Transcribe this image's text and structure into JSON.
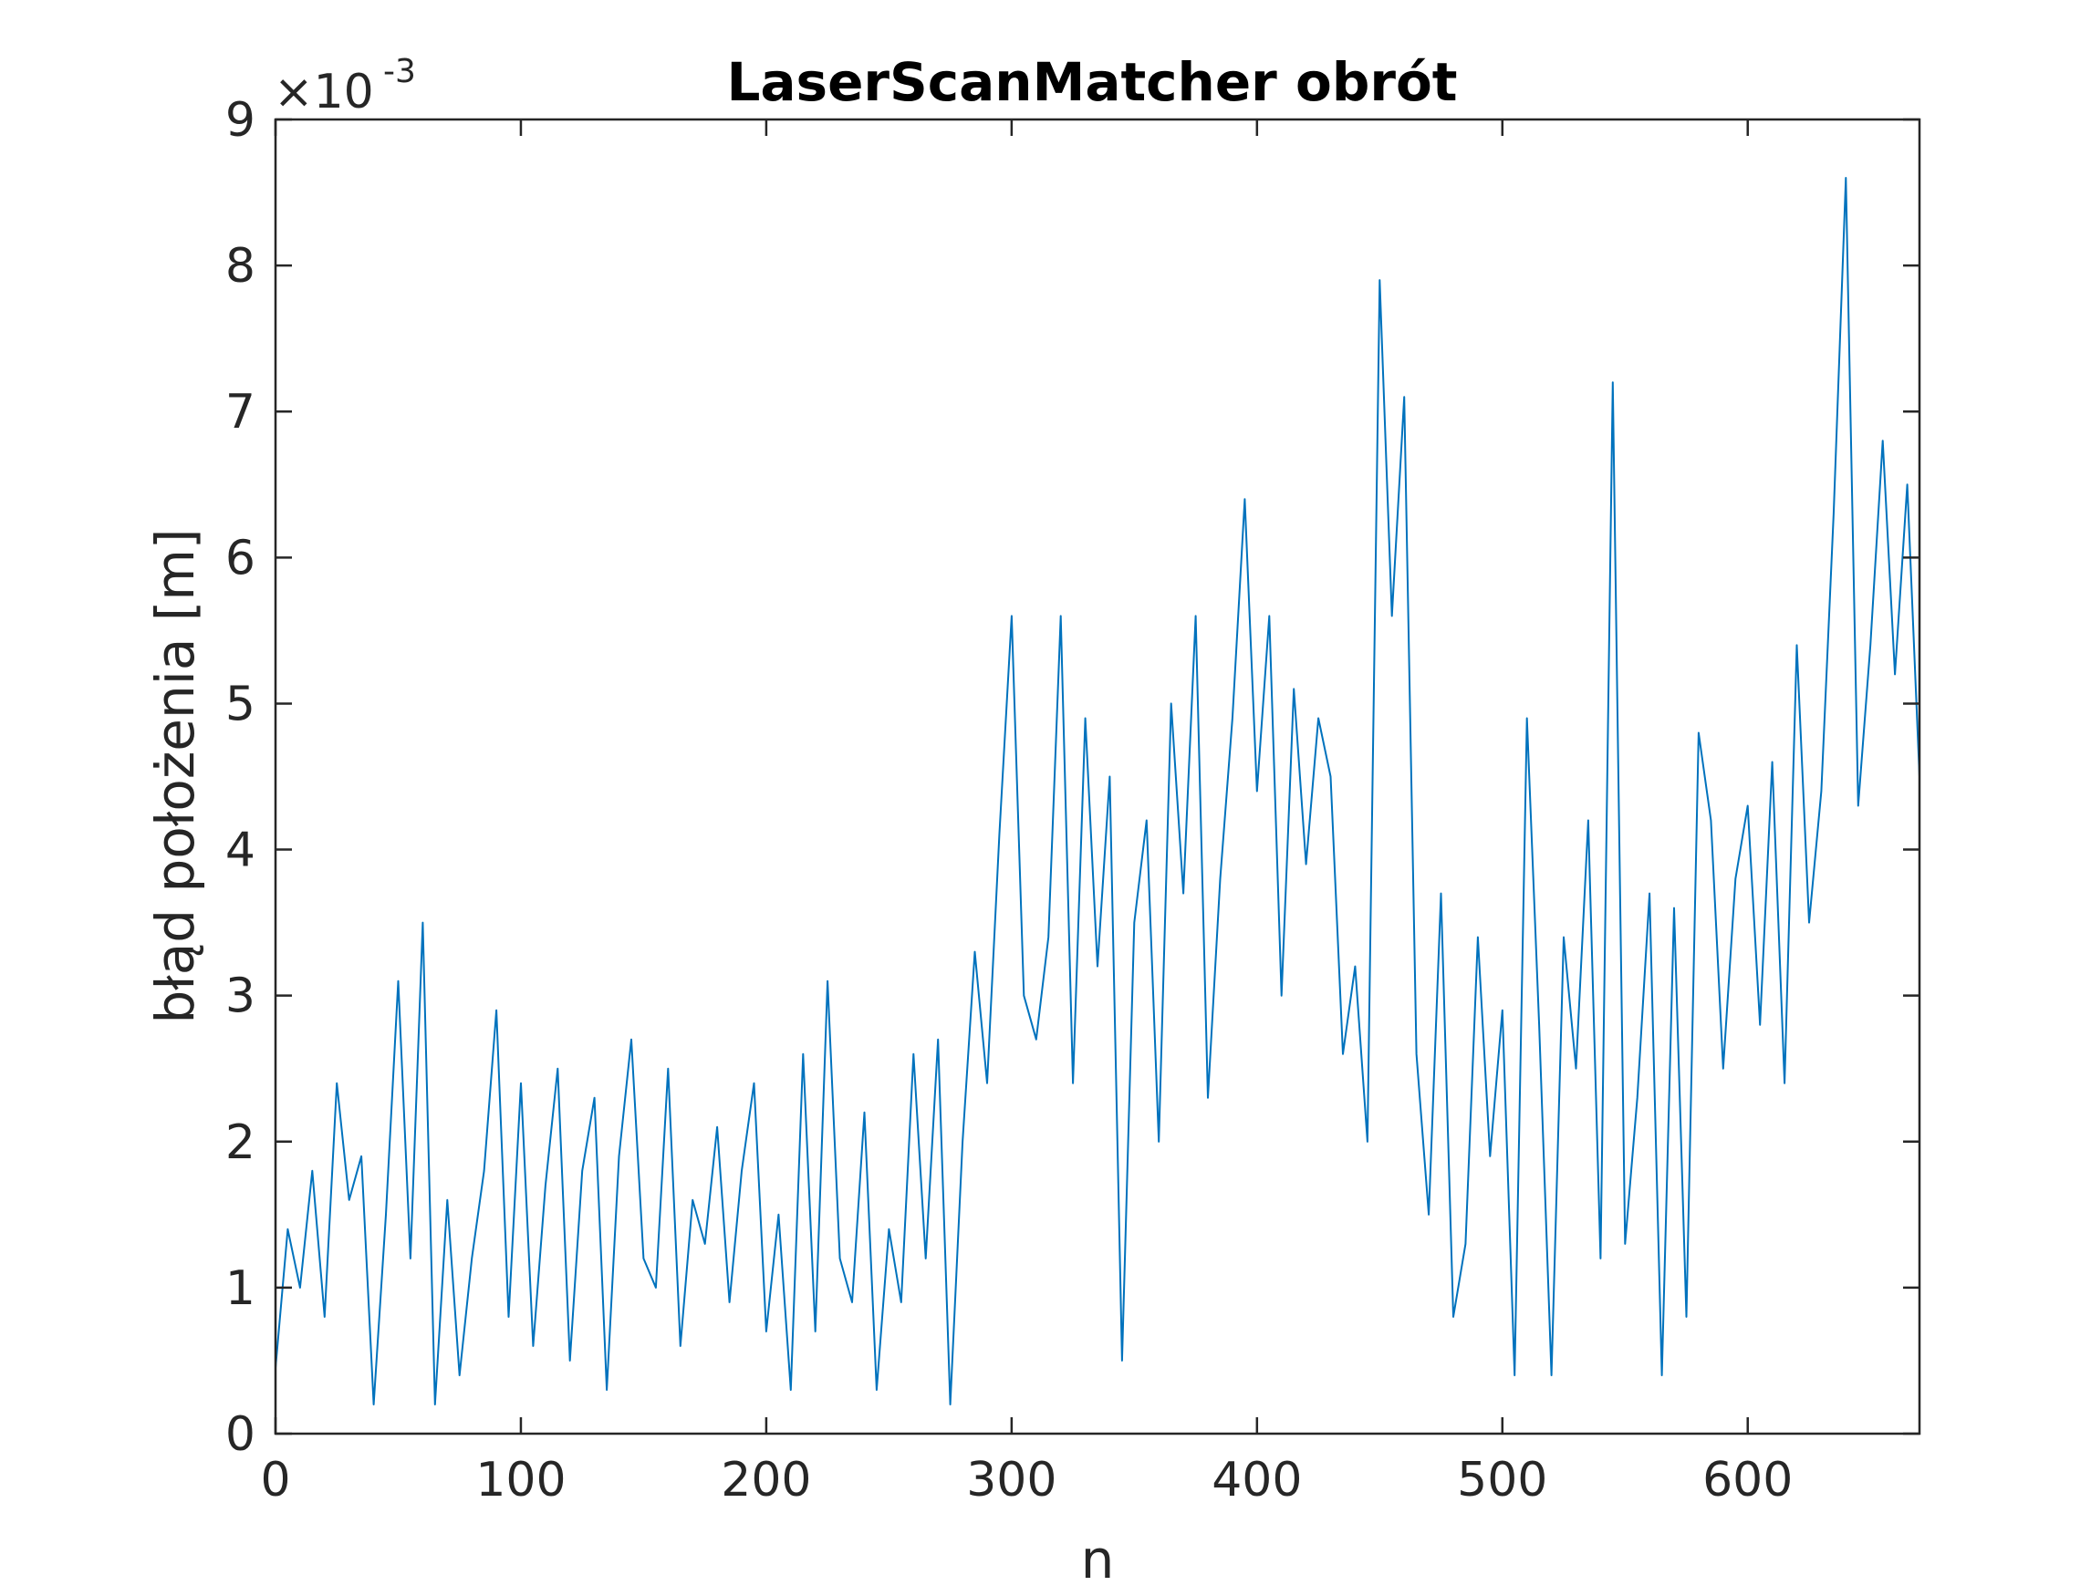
{
  "chart_data": {
    "type": "line",
    "title": "LaserScanMatcher obrót",
    "xlabel": "n",
    "ylabel": "błąd położenia [m]",
    "xlim": [
      0,
      670
    ],
    "ylim": [
      0,
      9
    ],
    "y_multiplier": {
      "base": "×10",
      "exponent": "-3"
    },
    "xticks": [
      0,
      100,
      200,
      300,
      400,
      500,
      600
    ],
    "xtick_labels": [
      "0",
      "100",
      "200",
      "300",
      "400",
      "500",
      "600"
    ],
    "yticks": [
      0,
      1,
      2,
      3,
      4,
      5,
      6,
      7,
      8,
      9
    ],
    "ytick_labels": [
      "0",
      "1",
      "2",
      "3",
      "4",
      "5",
      "6",
      "7",
      "8",
      "9"
    ],
    "grid": false,
    "line_color": "#0072BD",
    "series": [
      {
        "note_units": "values in units of 1e-3 m",
        "x": [
          0,
          5,
          10,
          15,
          20,
          25,
          30,
          35,
          40,
          45,
          50,
          55,
          60,
          65,
          70,
          75,
          80,
          85,
          90,
          95,
          100,
          105,
          110,
          115,
          120,
          125,
          130,
          135,
          140,
          145,
          150,
          155,
          160,
          165,
          170,
          175,
          180,
          185,
          190,
          195,
          200,
          205,
          210,
          215,
          220,
          225,
          230,
          235,
          240,
          245,
          250,
          255,
          260,
          265,
          270,
          275,
          280,
          285,
          290,
          295,
          300,
          305,
          310,
          315,
          320,
          325,
          330,
          335,
          340,
          345,
          350,
          355,
          360,
          365,
          370,
          375,
          380,
          385,
          390,
          395,
          400,
          405,
          410,
          415,
          420,
          425,
          430,
          435,
          440,
          445,
          450,
          455,
          460,
          465,
          470,
          475,
          480,
          485,
          490,
          495,
          500,
          505,
          510,
          515,
          520,
          525,
          530,
          535,
          540,
          545,
          550,
          555,
          560,
          565,
          570,
          575,
          580,
          585,
          590,
          595,
          600,
          605,
          610,
          615,
          620,
          625,
          630,
          635,
          640,
          645,
          650,
          655,
          660,
          665,
          670
        ],
        "values": [
          0.45,
          1.4,
          1.0,
          1.8,
          0.8,
          2.4,
          1.6,
          1.9,
          0.2,
          1.5,
          3.1,
          1.2,
          3.5,
          0.2,
          1.6,
          0.4,
          1.2,
          1.8,
          2.9,
          0.8,
          2.4,
          0.6,
          1.7,
          2.5,
          0.5,
          1.8,
          2.3,
          0.3,
          1.9,
          2.7,
          1.2,
          1.0,
          2.5,
          0.6,
          1.6,
          1.3,
          2.1,
          0.9,
          1.8,
          2.4,
          0.7,
          1.5,
          0.3,
          2.6,
          0.7,
          3.1,
          1.2,
          0.9,
          2.2,
          0.3,
          1.4,
          0.9,
          2.6,
          1.2,
          2.7,
          0.2,
          2.0,
          3.3,
          2.4,
          4.1,
          5.6,
          3.0,
          2.7,
          3.4,
          5.6,
          2.4,
          4.9,
          3.2,
          4.5,
          0.5,
          3.5,
          4.2,
          2.0,
          5.0,
          3.7,
          5.6,
          2.3,
          3.8,
          4.9,
          6.4,
          4.4,
          5.6,
          3.0,
          5.1,
          3.9,
          4.9,
          4.5,
          2.6,
          3.2,
          2.0,
          7.9,
          5.6,
          7.1,
          2.6,
          1.5,
          3.7,
          0.8,
          1.3,
          3.4,
          1.9,
          2.9,
          0.4,
          4.9,
          2.8,
          0.4,
          3.4,
          2.5,
          4.2,
          1.2,
          7.2,
          1.3,
          2.3,
          3.7,
          0.4,
          3.6,
          0.8,
          4.8,
          4.2,
          2.5,
          3.8,
          4.3,
          2.8,
          4.6,
          2.4,
          5.4,
          3.5,
          4.4,
          6.3,
          8.6,
          4.3,
          5.4,
          6.8,
          5.2,
          6.5,
          4.5
        ]
      }
    ]
  }
}
